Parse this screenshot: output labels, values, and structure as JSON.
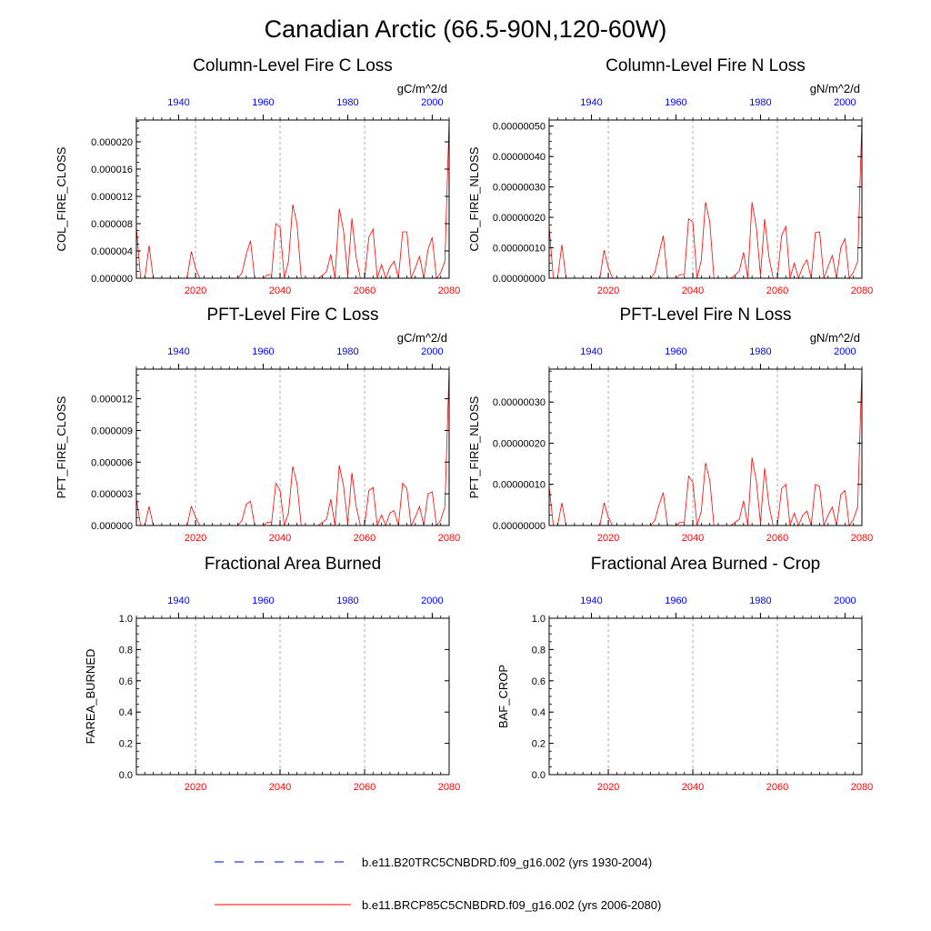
{
  "figure": {
    "title": "Canadian Arctic (66.5-90N,120-60W)"
  },
  "legend": [
    {
      "label": "b.e11.B20TRC5CNBDRD.f09_g16.002 (yrs 1930-2004)",
      "color": "#0000ff",
      "style": "dashed"
    },
    {
      "label": "b.e11.BRCP85C5CNBDRD.f09_g16.002 (yrs 2006-2080)",
      "color": "#ff0000",
      "style": "solid"
    }
  ],
  "chart_data": [
    {
      "type": "line",
      "title": "Column-Level Fire C Loss",
      "units": "gC/m^2/d",
      "ylabel": "COL_FIRE_CLOSS",
      "ylim": [
        0,
        2.32e-05
      ],
      "yticks": [
        0,
        4e-06,
        8e-06,
        1.2e-05,
        1.6e-05,
        2e-05
      ],
      "ytick_labels": [
        "0.000000",
        "0.000004",
        "0.000008",
        "0.000012",
        "0.000016",
        "0.000020"
      ],
      "xlim_bottom": [
        2006,
        2080
      ],
      "xticks_bottom": [
        "2020",
        "2040",
        "2060",
        "2080"
      ],
      "xlim_top": [
        1930,
        2004
      ],
      "xticks_top": [
        "1940",
        "1960",
        "1980",
        "2000"
      ],
      "grid_years": [
        2020,
        2040,
        2060
      ],
      "series": [
        {
          "name": "b.e11.BRCP85C5CNBDRD.f09_g16.002 (yrs 2006-2080)",
          "color": "#ff0000",
          "x": [
            2006,
            2007,
            2008,
            2009,
            2010,
            2011,
            2012,
            2013,
            2014,
            2015,
            2016,
            2017,
            2018,
            2019,
            2020,
            2021,
            2022,
            2023,
            2024,
            2025,
            2026,
            2027,
            2028,
            2029,
            2030,
            2031,
            2032,
            2033,
            2034,
            2035,
            2036,
            2037,
            2038,
            2039,
            2040,
            2041,
            2042,
            2043,
            2044,
            2045,
            2046,
            2047,
            2048,
            2049,
            2050,
            2051,
            2052,
            2053,
            2054,
            2055,
            2056,
            2057,
            2058,
            2059,
            2060,
            2061,
            2062,
            2063,
            2064,
            2065,
            2066,
            2067,
            2068,
            2069,
            2070,
            2071,
            2072,
            2073,
            2074,
            2075,
            2076,
            2077,
            2078,
            2079,
            2080
          ],
          "values": [
            7.5e-06,
            0,
            0,
            4.8e-06,
            0,
            0,
            0,
            0,
            0,
            0,
            0,
            0,
            0,
            3.9e-06,
            1.5e-06,
            0,
            0,
            0,
            0,
            0,
            0,
            0,
            0,
            0,
            0,
            8e-07,
            3.5e-06,
            5.5e-06,
            0,
            0,
            0,
            5e-07,
            5e-07,
            8e-06,
            7.5e-06,
            0,
            2.5e-06,
            1.08e-05,
            8e-06,
            0,
            0,
            0,
            0,
            0,
            4e-07,
            1e-06,
            3.5e-06,
            0,
            1.02e-05,
            7e-06,
            4e-07,
            8.8e-06,
            3e-06,
            0,
            0,
            6e-06,
            7.2e-06,
            0,
            2e-06,
            0,
            1.6e-06,
            2.5e-06,
            0,
            6.8e-06,
            6.8e-06,
            0,
            1.5e-06,
            3.2e-06,
            0,
            4.2e-06,
            6e-06,
            0,
            8e-07,
            2.5e-06,
            2.32e-05
          ]
        }
      ]
    },
    {
      "type": "line",
      "title": "Column-Level Fire N Loss",
      "units": "gN/m^2/d",
      "ylabel": "COL_FIRE_NLOSS",
      "ylim": [
        0,
        5.2e-07
      ],
      "yticks": [
        0,
        1e-07,
        2e-07,
        3e-07,
        4e-07,
        5e-07
      ],
      "ytick_labels": [
        "0.00000000",
        "0.00000010",
        "0.00000020",
        "0.00000030",
        "0.00000040",
        "0.00000050"
      ],
      "xlim_bottom": [
        2006,
        2080
      ],
      "xticks_bottom": [
        "2020",
        "2040",
        "2060",
        "2080"
      ],
      "xlim_top": [
        1930,
        2004
      ],
      "xticks_top": [
        "1940",
        "1960",
        "1980",
        "2000"
      ],
      "grid_years": [
        2020,
        2040,
        2060
      ],
      "series": [
        {
          "name": "b.e11.BRCP85C5CNBDRD.f09_g16.002 (yrs 2006-2080)",
          "color": "#ff0000",
          "x": [
            2006,
            2007,
            2008,
            2009,
            2010,
            2011,
            2012,
            2013,
            2014,
            2015,
            2016,
            2017,
            2018,
            2019,
            2020,
            2021,
            2022,
            2023,
            2024,
            2025,
            2026,
            2027,
            2028,
            2029,
            2030,
            2031,
            2032,
            2033,
            2034,
            2035,
            2036,
            2037,
            2038,
            2039,
            2040,
            2041,
            2042,
            2043,
            2044,
            2045,
            2046,
            2047,
            2048,
            2049,
            2050,
            2051,
            2052,
            2053,
            2054,
            2055,
            2056,
            2057,
            2058,
            2059,
            2060,
            2061,
            2062,
            2063,
            2064,
            2065,
            2066,
            2067,
            2068,
            2069,
            2070,
            2071,
            2072,
            2073,
            2074,
            2075,
            2076,
            2077,
            2078,
            2079,
            2080
          ],
          "values": [
            1.7e-07,
            0,
            0,
            1.1e-07,
            0,
            0,
            0,
            0,
            0,
            0,
            0,
            0,
            0,
            9.2e-08,
            3.5e-08,
            0,
            0,
            0,
            0,
            0,
            0,
            0,
            0,
            0,
            0,
            1.8e-08,
            8e-08,
            1.4e-07,
            0,
            0,
            0,
            1.2e-08,
            1.2e-08,
            1.95e-07,
            1.85e-07,
            0,
            6e-08,
            2.5e-07,
            1.85e-07,
            0,
            0,
            0,
            0,
            0,
            1e-08,
            2.4e-08,
            8.5e-08,
            0,
            2.5e-07,
            1.7e-07,
            1e-08,
            1.95e-07,
            7e-08,
            0,
            0,
            1.4e-07,
            1.7e-07,
            0,
            5e-08,
            0,
            3.8e-08,
            6e-08,
            0,
            1.5e-07,
            1.52e-07,
            0,
            3.8e-08,
            7.5e-08,
            0,
            1e-07,
            1.3e-07,
            0,
            2e-08,
            5.5e-08,
            5.2e-07
          ]
        }
      ]
    },
    {
      "type": "line",
      "title": "PFT-Level Fire C Loss",
      "units": "gC/m^2/d",
      "ylabel": "PFT_FIRE_CLOSS",
      "ylim": [
        0,
        1.48e-05
      ],
      "yticks": [
        0,
        3e-06,
        6e-06,
        9e-06,
        1.2e-05
      ],
      "ytick_labels": [
        "0.000000",
        "0.000003",
        "0.000006",
        "0.000009",
        "0.000012"
      ],
      "xlim_bottom": [
        2006,
        2080
      ],
      "xticks_bottom": [
        "2020",
        "2040",
        "2060",
        "2080"
      ],
      "xlim_top": [
        1930,
        2004
      ],
      "xticks_top": [
        "1940",
        "1960",
        "1980",
        "2000"
      ],
      "grid_years": [
        2020,
        2040,
        2060
      ],
      "series": [
        {
          "name": "b.e11.BRCP85C5CNBDRD.f09_g16.002 (yrs 2006-2080)",
          "color": "#ff0000",
          "x": [
            2006,
            2007,
            2008,
            2009,
            2010,
            2011,
            2012,
            2013,
            2014,
            2015,
            2016,
            2017,
            2018,
            2019,
            2020,
            2021,
            2022,
            2023,
            2024,
            2025,
            2026,
            2027,
            2028,
            2029,
            2030,
            2031,
            2032,
            2033,
            2034,
            2035,
            2036,
            2037,
            2038,
            2039,
            2040,
            2041,
            2042,
            2043,
            2044,
            2045,
            2046,
            2047,
            2048,
            2049,
            2050,
            2051,
            2052,
            2053,
            2054,
            2055,
            2056,
            2057,
            2058,
            2059,
            2060,
            2061,
            2062,
            2063,
            2064,
            2065,
            2066,
            2067,
            2068,
            2069,
            2070,
            2071,
            2072,
            2073,
            2074,
            2075,
            2076,
            2077,
            2078,
            2079,
            2080
          ],
          "values": [
            2.5e-06,
            0,
            0,
            1.8e-06,
            0,
            0,
            0,
            0,
            0,
            0,
            0,
            0,
            0,
            1.8e-06,
            8e-07,
            0,
            0,
            0,
            0,
            0,
            0,
            0,
            0,
            0,
            0,
            5e-07,
            2e-06,
            2.3e-06,
            0,
            0,
            0,
            3e-07,
            3e-07,
            4e-06,
            3.3e-06,
            0,
            1.2e-06,
            5.6e-06,
            4e-06,
            0,
            0,
            0,
            0,
            0,
            3e-07,
            6e-07,
            2.5e-06,
            0,
            5.7e-06,
            3.8e-06,
            2e-07,
            5e-06,
            1.8e-06,
            0,
            0,
            3.3e-06,
            3.6e-06,
            0,
            1e-06,
            0,
            1.2e-06,
            1.4e-06,
            0,
            4e-06,
            3.5e-06,
            0,
            8e-07,
            1.8e-06,
            0,
            3e-06,
            3.2e-06,
            0,
            5e-07,
            1.8e-06,
            1.48e-05
          ]
        }
      ]
    },
    {
      "type": "line",
      "title": "PFT-Level Fire N Loss",
      "units": "gN/m^2/d",
      "ylabel": "PFT_FIRE_NLOSS",
      "ylim": [
        0,
        3.8e-07
      ],
      "yticks": [
        0,
        1e-07,
        2e-07,
        3e-07
      ],
      "ytick_labels": [
        "0.00000000",
        "0.00000010",
        "0.00000020",
        "0.00000030"
      ],
      "xlim_bottom": [
        2006,
        2080
      ],
      "xticks_bottom": [
        "2020",
        "2040",
        "2060",
        "2080"
      ],
      "xlim_top": [
        1930,
        2004
      ],
      "xticks_top": [
        "1940",
        "1960",
        "1980",
        "2000"
      ],
      "grid_years": [
        2020,
        2040,
        2060
      ],
      "series": [
        {
          "name": "b.e11.BRCP85C5CNBDRD.f09_g16.002 (yrs 2006-2080)",
          "color": "#ff0000",
          "x": [
            2006,
            2007,
            2008,
            2009,
            2010,
            2011,
            2012,
            2013,
            2014,
            2015,
            2016,
            2017,
            2018,
            2019,
            2020,
            2021,
            2022,
            2023,
            2024,
            2025,
            2026,
            2027,
            2028,
            2029,
            2030,
            2031,
            2032,
            2033,
            2034,
            2035,
            2036,
            2037,
            2038,
            2039,
            2040,
            2041,
            2042,
            2043,
            2044,
            2045,
            2046,
            2047,
            2048,
            2049,
            2050,
            2051,
            2052,
            2053,
            2054,
            2055,
            2056,
            2057,
            2058,
            2059,
            2060,
            2061,
            2062,
            2063,
            2064,
            2065,
            2066,
            2067,
            2068,
            2069,
            2070,
            2071,
            2072,
            2073,
            2074,
            2075,
            2076,
            2077,
            2078,
            2079,
            2080
          ],
          "values": [
            9.5e-08,
            0,
            0,
            5.5e-08,
            0,
            0,
            0,
            0,
            0,
            0,
            0,
            0,
            0,
            5.5e-08,
            2e-08,
            0,
            0,
            0,
            0,
            0,
            0,
            0,
            0,
            0,
            0,
            1.2e-08,
            5e-08,
            8e-08,
            0,
            0,
            0,
            8e-09,
            8e-09,
            1.2e-07,
            1.05e-07,
            0,
            3.5e-08,
            1.52e-07,
            1.1e-07,
            0,
            0,
            0,
            0,
            0,
            8e-09,
            1.5e-08,
            6e-08,
            0,
            1.65e-07,
            1.1e-07,
            6e-09,
            1.4e-07,
            5e-08,
            0,
            0,
            9e-08,
            1e-07,
            0,
            3e-08,
            0,
            2.5e-08,
            3.5e-08,
            0,
            1e-07,
            9.5e-08,
            0,
            2.5e-08,
            4.5e-08,
            0,
            7.5e-08,
            8.5e-08,
            0,
            1.5e-08,
            4.5e-08,
            3.8e-07
          ]
        }
      ]
    },
    {
      "type": "line",
      "title": "Fractional Area Burned",
      "units": "",
      "ylabel": "FAREA_BURNED",
      "ylim": [
        0,
        1
      ],
      "yticks": [
        0,
        0.2,
        0.4,
        0.6,
        0.8,
        1.0
      ],
      "ytick_labels": [
        "0.0",
        "0.2",
        "0.4",
        "0.6",
        "0.8",
        "1.0"
      ],
      "xlim_bottom": [
        2006,
        2080
      ],
      "xticks_bottom": [
        "2020",
        "2040",
        "2060",
        "2080"
      ],
      "xlim_top": [
        1930,
        2004
      ],
      "xticks_top": [
        "1940",
        "1960",
        "1980",
        "2000"
      ],
      "grid_years": [
        2020,
        2040,
        2060
      ],
      "series": []
    },
    {
      "type": "line",
      "title": "Fractional Area Burned - Crop",
      "units": "",
      "ylabel": "BAF_CROP",
      "ylim": [
        0,
        1
      ],
      "yticks": [
        0,
        0.2,
        0.4,
        0.6,
        0.8,
        1.0
      ],
      "ytick_labels": [
        "0.0",
        "0.2",
        "0.4",
        "0.6",
        "0.8",
        "1.0"
      ],
      "xlim_bottom": [
        2006,
        2080
      ],
      "xticks_bottom": [
        "2020",
        "2040",
        "2060",
        "2080"
      ],
      "xlim_top": [
        1930,
        2004
      ],
      "xticks_top": [
        "1940",
        "1960",
        "1980",
        "2000"
      ],
      "grid_years": [
        2020,
        2040,
        2060
      ],
      "series": []
    }
  ]
}
